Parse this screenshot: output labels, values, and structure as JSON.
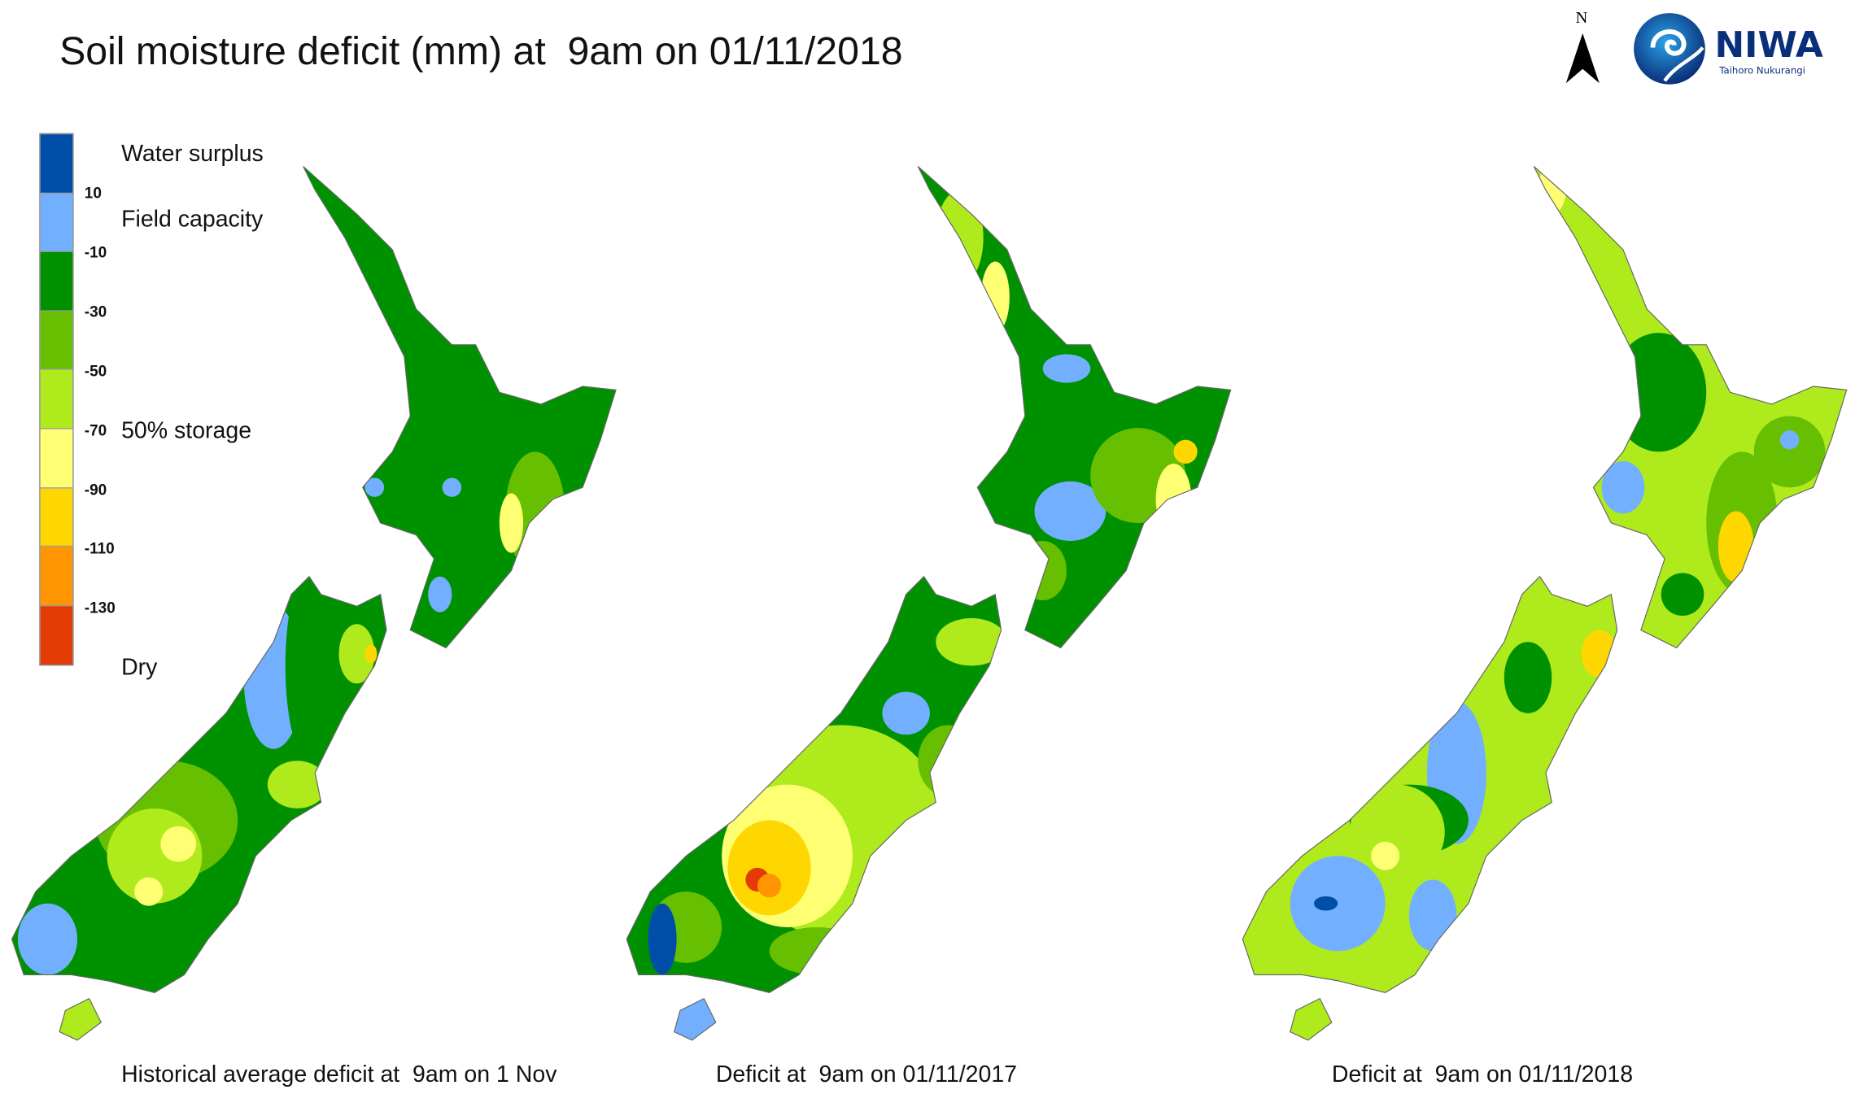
{
  "title": "Soil moisture deficit (mm) at  9am on 01/11/2018",
  "legend": {
    "colors": [
      "#004ea8",
      "#72b0ff",
      "#009100",
      "#66bf00",
      "#aeea1c",
      "#ffff74",
      "#ffd700",
      "#ff9500",
      "#e43b05"
    ],
    "ticks": [
      "10",
      "-10",
      "-30",
      "-50",
      "-70",
      "-90",
      "-110",
      "-130"
    ],
    "labels": {
      "surplus": "Water surplus",
      "field": "Field capacity",
      "storage": "50% storage",
      "dry": "Dry"
    }
  },
  "maps": [
    {
      "caption": "Historical average deficit at  9am on 1 Nov"
    },
    {
      "caption": "Deficit at  9am on 01/11/2017"
    },
    {
      "caption": "Deficit at  9am on 01/11/2018"
    }
  ],
  "north_arrow": {
    "label": "N"
  },
  "logo": {
    "name": "NIWA",
    "tagline": "Taihoro Nukurangi",
    "color": "#0a2f7a"
  }
}
